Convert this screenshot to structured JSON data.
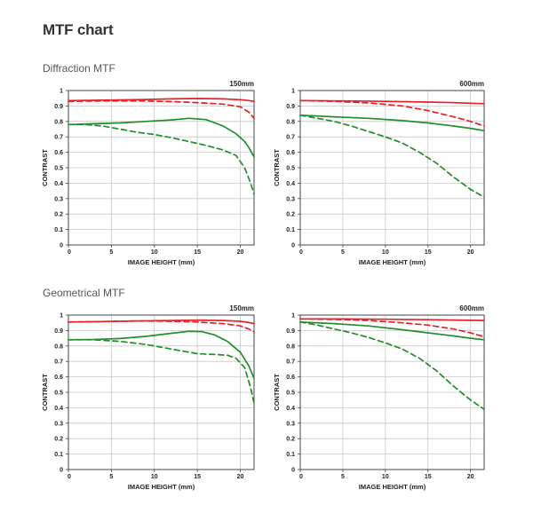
{
  "page": {
    "title": "MTF chart",
    "sections": [
      "Diffraction MTF",
      "Geometrical MTF"
    ]
  },
  "colors": {
    "red": "#e8202a",
    "green": "#1f8f2a",
    "grid": "#c8c8c8",
    "axis": "#444444"
  },
  "chart_data": [
    {
      "type": "line",
      "section": "Diffraction MTF",
      "title": "150mm",
      "xlabel": "IMAGE HEIGHT (mm)",
      "ylabel": "CONTRAST",
      "xlim": [
        0,
        21.6
      ],
      "ylim": [
        0,
        1
      ],
      "xticks": [
        0,
        5,
        10,
        15,
        20
      ],
      "yticks": [
        0,
        0.1,
        0.2,
        0.3,
        0.4,
        0.5,
        0.6,
        0.7,
        0.8,
        0.9,
        1
      ],
      "ytick_labels": [
        "0",
        "0.1",
        "0.2",
        "0.3",
        "0.4",
        "0.5",
        "0.6",
        "0.7",
        "0.8",
        "0.9",
        "1"
      ],
      "grid": true,
      "legend": "none",
      "series": [
        {
          "color": "red",
          "style": "solid",
          "x": [
            0,
            3,
            6,
            9,
            12,
            15,
            18,
            20,
            21,
            21.6
          ],
          "y": [
            0.935,
            0.937,
            0.939,
            0.942,
            0.946,
            0.948,
            0.946,
            0.94,
            0.935,
            0.93
          ]
        },
        {
          "color": "red",
          "style": "dashed",
          "x": [
            0,
            3,
            6,
            9,
            12,
            15,
            18,
            20,
            21,
            21.6
          ],
          "y": [
            0.93,
            0.932,
            0.932,
            0.932,
            0.928,
            0.922,
            0.912,
            0.895,
            0.86,
            0.82
          ]
        },
        {
          "color": "green",
          "style": "solid",
          "x": [
            0,
            3,
            6,
            9,
            12,
            14,
            16,
            18,
            19.5,
            20.5,
            21,
            21.6
          ],
          "y": [
            0.78,
            0.785,
            0.79,
            0.8,
            0.81,
            0.82,
            0.812,
            0.77,
            0.72,
            0.67,
            0.63,
            0.57
          ]
        },
        {
          "color": "green",
          "style": "dashed",
          "x": [
            0,
            2,
            4,
            6,
            8,
            10,
            12,
            14,
            16,
            18,
            19.5,
            20.5,
            21.2,
            21.6
          ],
          "y": [
            0.78,
            0.78,
            0.77,
            0.75,
            0.73,
            0.715,
            0.695,
            0.67,
            0.645,
            0.615,
            0.58,
            0.5,
            0.4,
            0.33
          ]
        }
      ]
    },
    {
      "type": "line",
      "section": "Diffraction MTF",
      "title": "600mm",
      "xlabel": "IMAGE HEIGHT (mm)",
      "ylabel": "CONTRAST",
      "xlim": [
        0,
        21.6
      ],
      "ylim": [
        0,
        1
      ],
      "xticks": [
        0,
        5,
        10,
        15,
        20
      ],
      "yticks": [
        0,
        0.1,
        0.2,
        0.3,
        0.4,
        0.5,
        0.6,
        0.7,
        0.8,
        0.9,
        1
      ],
      "ytick_labels": [
        "0",
        "0.1",
        "0.2",
        "0.3",
        "0.4",
        "0.5",
        "0.6",
        "0.7",
        "0.8",
        "0.9",
        "1"
      ],
      "grid": true,
      "legend": "none",
      "series": [
        {
          "color": "red",
          "style": "solid",
          "x": [
            0,
            5,
            10,
            15,
            18,
            20,
            21.6
          ],
          "y": [
            0.935,
            0.933,
            0.93,
            0.925,
            0.922,
            0.918,
            0.915
          ]
        },
        {
          "color": "red",
          "style": "dashed",
          "x": [
            0,
            4,
            8,
            12,
            15,
            18,
            20,
            21.6
          ],
          "y": [
            0.935,
            0.93,
            0.92,
            0.9,
            0.87,
            0.83,
            0.8,
            0.77
          ]
        },
        {
          "color": "green",
          "style": "solid",
          "x": [
            0,
            4,
            8,
            12,
            15,
            18,
            20,
            21.6
          ],
          "y": [
            0.84,
            0.83,
            0.82,
            0.805,
            0.79,
            0.77,
            0.755,
            0.74
          ]
        },
        {
          "color": "green",
          "style": "dashed",
          "x": [
            0,
            2,
            4,
            6,
            8,
            10,
            12,
            14,
            16,
            18,
            20,
            21.6
          ],
          "y": [
            0.84,
            0.82,
            0.8,
            0.77,
            0.735,
            0.7,
            0.66,
            0.6,
            0.53,
            0.44,
            0.36,
            0.31
          ]
        }
      ]
    },
    {
      "type": "line",
      "section": "Geometrical MTF",
      "title": "150mm",
      "xlabel": "IMAGE HEIGHT (mm)",
      "ylabel": "CONTRAST",
      "xlim": [
        0,
        21.6
      ],
      "ylim": [
        0,
        1
      ],
      "xticks": [
        0,
        5,
        10,
        15,
        20
      ],
      "yticks": [
        0,
        0.1,
        0.2,
        0.3,
        0.4,
        0.5,
        0.6,
        0.7,
        0.8,
        0.9,
        1
      ],
      "ytick_labels": [
        "0",
        "0.1",
        "0.2",
        "0.3",
        "0.4",
        "0.5",
        "0.6",
        "0.7",
        "0.8",
        "0.9",
        "1"
      ],
      "grid": true,
      "legend": "none",
      "series": [
        {
          "color": "red",
          "style": "solid",
          "x": [
            0,
            4,
            8,
            12,
            15,
            18,
            20,
            21,
            21.6
          ],
          "y": [
            0.955,
            0.958,
            0.962,
            0.965,
            0.967,
            0.965,
            0.96,
            0.952,
            0.945
          ]
        },
        {
          "color": "red",
          "style": "dashed",
          "x": [
            0,
            4,
            8,
            12,
            15,
            18,
            20,
            21,
            21.6
          ],
          "y": [
            0.955,
            0.958,
            0.962,
            0.96,
            0.955,
            0.945,
            0.93,
            0.91,
            0.89
          ]
        },
        {
          "color": "green",
          "style": "solid",
          "x": [
            0,
            3,
            6,
            9,
            12,
            14,
            15.5,
            17,
            18.5,
            20,
            21,
            21.6
          ],
          "y": [
            0.84,
            0.842,
            0.848,
            0.862,
            0.882,
            0.895,
            0.893,
            0.872,
            0.83,
            0.76,
            0.67,
            0.59
          ]
        },
        {
          "color": "green",
          "style": "dashed",
          "x": [
            0,
            3,
            6,
            9,
            12,
            15,
            17,
            18.5,
            19.5,
            20.5,
            21.2,
            21.6
          ],
          "y": [
            0.84,
            0.84,
            0.83,
            0.81,
            0.78,
            0.75,
            0.745,
            0.74,
            0.72,
            0.66,
            0.53,
            0.43
          ]
        }
      ]
    },
    {
      "type": "line",
      "section": "Geometrical MTF",
      "title": "600mm",
      "xlabel": "IMAGE HEIGHT (mm)",
      "ylabel": "CONTRAST",
      "xlim": [
        0,
        21.6
      ],
      "ylim": [
        0,
        1
      ],
      "xticks": [
        0,
        5,
        10,
        15,
        20
      ],
      "yticks": [
        0,
        0.1,
        0.2,
        0.3,
        0.4,
        0.5,
        0.6,
        0.7,
        0.8,
        0.9,
        1
      ],
      "ytick_labels": [
        "0",
        "0.1",
        "0.2",
        "0.3",
        "0.4",
        "0.5",
        "0.6",
        "0.7",
        "0.8",
        "0.9",
        "1"
      ],
      "grid": true,
      "legend": "none",
      "series": [
        {
          "color": "red",
          "style": "solid",
          "x": [
            0,
            5,
            10,
            15,
            18,
            20,
            21.6
          ],
          "y": [
            0.975,
            0.975,
            0.973,
            0.97,
            0.968,
            0.966,
            0.965
          ]
        },
        {
          "color": "red",
          "style": "dashed",
          "x": [
            0,
            4,
            8,
            12,
            15,
            18,
            20,
            21.6
          ],
          "y": [
            0.975,
            0.972,
            0.965,
            0.95,
            0.935,
            0.91,
            0.885,
            0.86
          ]
        },
        {
          "color": "green",
          "style": "solid",
          "x": [
            0,
            4,
            8,
            12,
            15,
            18,
            20,
            21.6
          ],
          "y": [
            0.955,
            0.945,
            0.93,
            0.905,
            0.885,
            0.865,
            0.85,
            0.84
          ]
        },
        {
          "color": "green",
          "style": "dashed",
          "x": [
            0,
            2,
            4,
            6,
            8,
            10,
            12,
            14,
            16,
            18,
            20,
            21.6
          ],
          "y": [
            0.955,
            0.935,
            0.91,
            0.885,
            0.855,
            0.82,
            0.78,
            0.72,
            0.64,
            0.54,
            0.45,
            0.39
          ]
        }
      ]
    }
  ]
}
